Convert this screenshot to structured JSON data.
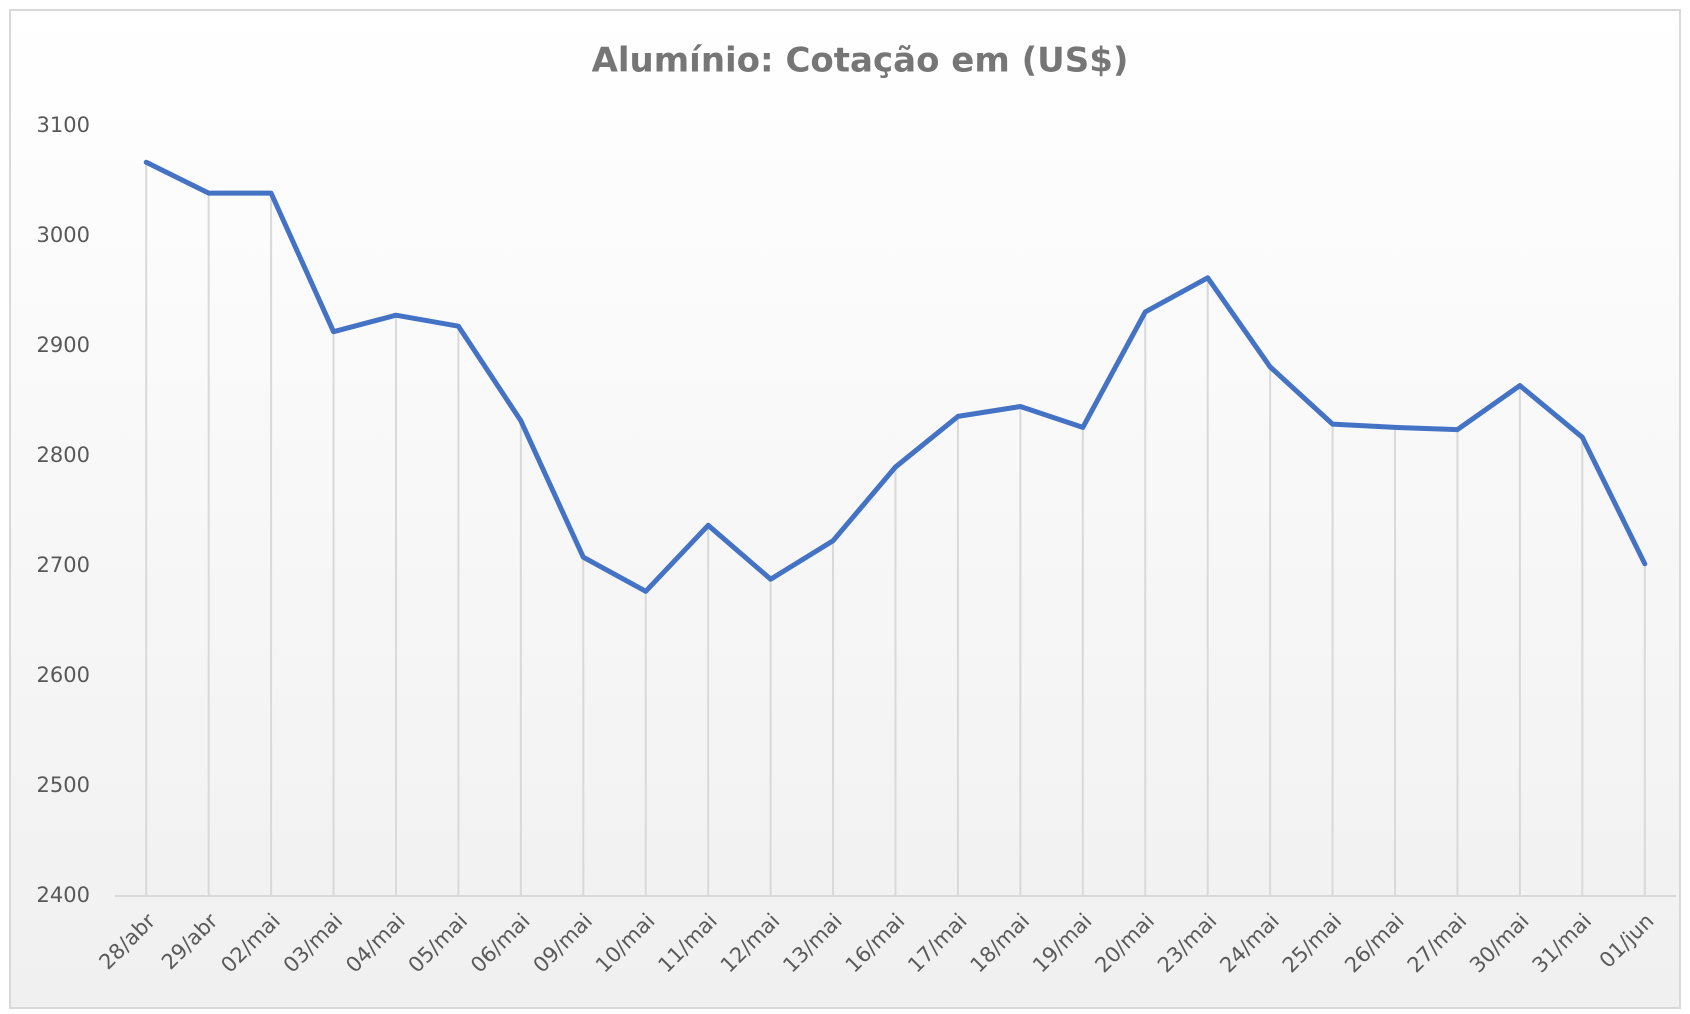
{
  "chart_data": {
    "type": "line",
    "title": "Alumínio: Cotação em (US$)",
    "categories": [
      "28/abr",
      "29/abr",
      "02/mai",
      "03/mai",
      "04/mai",
      "05/mai",
      "06/mai",
      "09/mai",
      "10/mai",
      "11/mai",
      "12/mai",
      "13/mai",
      "16/mai",
      "17/mai",
      "18/mai",
      "19/mai",
      "20/mai",
      "23/mai",
      "24/mai",
      "25/mai",
      "26/mai",
      "27/mai",
      "30/mai",
      "31/mai",
      "01/jun"
    ],
    "series": [
      {
        "name": "Cotação",
        "color": "#4472c4",
        "values": [
          3067,
          3039,
          3039,
          2913,
          2928,
          2918,
          2832,
          2708,
          2677,
          2737,
          2688,
          2723,
          2790,
          2836,
          2845,
          2826,
          2931,
          2962,
          2881,
          2829,
          2826,
          2824,
          2864,
          2817,
          2702
        ]
      }
    ],
    "ylim": [
      2400,
      3100
    ],
    "yticks": [
      2400,
      2500,
      2600,
      2700,
      2800,
      2900,
      3000,
      3100
    ],
    "drop_lines": true
  }
}
